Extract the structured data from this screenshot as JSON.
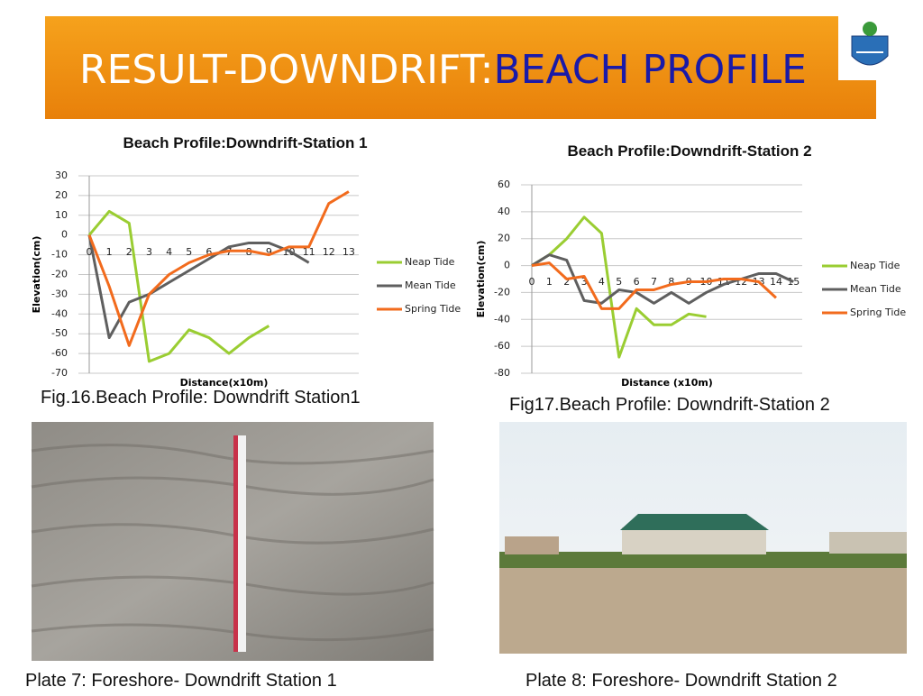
{
  "title": {
    "part1": "RESULT-DOWNDRIFT:",
    "part2": "BEACH PROFILE"
  },
  "chart_data": [
    {
      "type": "line",
      "title": "Beach Profile:Downdrift-Station 1",
      "x_label": "Distance(x10m)",
      "y_label": "Elevation(cm)",
      "x": [
        0,
        1,
        2,
        3,
        4,
        5,
        6,
        7,
        8,
        9,
        10,
        11,
        12,
        13
      ],
      "xlim": [
        0,
        13.5
      ],
      "ylim": [
        -70,
        30
      ],
      "yticks": [
        -70,
        -60,
        -50,
        -40,
        -30,
        -20,
        -10,
        0,
        10,
        20,
        30
      ],
      "grid": true,
      "legend": "right",
      "series": [
        {
          "name": "Neap Tide",
          "color": "#9acd32",
          "values": [
            0,
            12,
            6,
            -64,
            -60,
            -48,
            -52,
            -60,
            -52,
            -46,
            null,
            null,
            null,
            null
          ]
        },
        {
          "name": "Mean Tide",
          "color": "#5f5f5f",
          "values": [
            0,
            -52,
            -34,
            -30,
            -24,
            -18,
            -12,
            -6,
            -4,
            -4,
            -8,
            -14,
            null,
            null
          ]
        },
        {
          "name": "Spring Tide",
          "color": "#f26b1d",
          "values": [
            0,
            -26,
            -56,
            -30,
            -20,
            -14,
            -10,
            -8,
            -8,
            -10,
            -6,
            -6,
            16,
            22
          ]
        }
      ]
    },
    {
      "type": "line",
      "title": "Beach Profile:Downdrift-Station 2",
      "x_label": "Distance (x10m)",
      "y_label": "Elevation(cm)",
      "x": [
        0,
        1,
        2,
        3,
        4,
        5,
        6,
        7,
        8,
        9,
        10,
        11,
        12,
        13,
        14,
        15
      ],
      "xlim": [
        0,
        15.5
      ],
      "ylim": [
        -80,
        60
      ],
      "yticks": [
        -80,
        -60,
        -40,
        -20,
        0,
        20,
        40,
        60
      ],
      "grid": true,
      "legend": "right",
      "series": [
        {
          "name": "Neap Tide",
          "color": "#9acd32",
          "values": [
            0,
            8,
            20,
            36,
            24,
            -68,
            -32,
            -44,
            -44,
            -36,
            -38,
            null,
            null,
            null,
            null,
            null
          ]
        },
        {
          "name": "Mean Tide",
          "color": "#5f5f5f",
          "values": [
            0,
            8,
            4,
            -26,
            -28,
            -18,
            -20,
            -28,
            -20,
            -28,
            -20,
            -14,
            -10,
            -6,
            -6,
            -12
          ]
        },
        {
          "name": "Spring Tide",
          "color": "#f26b1d",
          "values": [
            0,
            2,
            -10,
            -8,
            -32,
            -32,
            -18,
            -18,
            -14,
            -12,
            -12,
            -10,
            -10,
            -12,
            -24,
            null
          ]
        }
      ]
    }
  ],
  "figure_captions": [
    "Fig.16.Beach Profile: Downdrift Station1",
    "Fig17.Beach Profile: Downdrift-Station 2"
  ],
  "plate_captions": [
    "Plate 7: Foreshore- Downdrift Station 1",
    "Plate 8: Foreshore- Downdrift Station 2"
  ]
}
